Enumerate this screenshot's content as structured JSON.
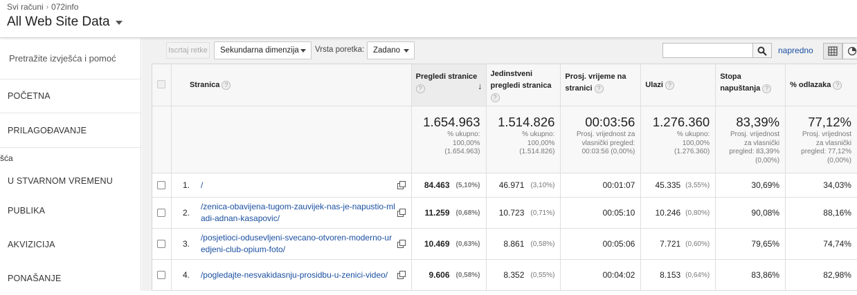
{
  "header": {
    "breadcrumb_root": "Svi računi",
    "breadcrumb_account": "072info",
    "property": "All Web Site Data"
  },
  "sidebar": {
    "search": "Pretražite izvješća i pomoć",
    "items": [
      "POČETNA",
      "PRILAGOĐAVANJE"
    ],
    "section_label": "šća",
    "items2": [
      "U STVARNOM VREMENU",
      "PUBLIKA",
      "AKVIZICIJA",
      "PONAŠANJE"
    ]
  },
  "toolbar": {
    "plot_rows": "Iscrtaj retke",
    "secondary_dim": "Sekundarna dimenzija",
    "sort_type_label": "Vrsta poretka:",
    "sort_type": "Zadano",
    "search_value": "",
    "advanced": "napredno"
  },
  "table": {
    "headers": {
      "page": "Stranica",
      "pageviews": "Pregledi stranice",
      "unique_line1": "Jedinstveni",
      "unique_line2": "pregledi stranica",
      "avg_time_line1": "Prosj. vrijeme na",
      "avg_time_line2": "stranici",
      "entrances": "Ulazi",
      "exit_line1": "Stopa",
      "exit_line2": "napuštanja",
      "bounce": "% odlazaka"
    },
    "totals": {
      "pageviews": "1.654.963",
      "pageviews_sub": [
        "% ukupno:",
        "100,00%",
        "(1.654.963)"
      ],
      "unique": "1.514.826",
      "unique_sub": [
        "% ukupno:",
        "100,00%",
        "(1.514.826)"
      ],
      "avg_time": "00:03:56",
      "avg_time_sub": [
        "Prosj. vrijednost za",
        "vlasnički pregled:",
        "00:03:56 (0,00%)"
      ],
      "entrances": "1.276.360",
      "entrances_sub": [
        "% ukupno:",
        "100,00%",
        "(1.276.360)"
      ],
      "exit": "83,39%",
      "exit_sub": [
        "Prosj. vrijednost",
        "za vlasnički",
        "pregled: 83,39%",
        "(0,00%)"
      ],
      "bounce": "77,12%",
      "bounce_sub": [
        "Prosj. vrijednost",
        "za vlasnički",
        "pregled: 77,12%",
        "(0,00%)"
      ]
    },
    "rows": [
      {
        "idx": "1.",
        "page": "/",
        "pv": "84.463",
        "pv_pct": "(5,10%)",
        "upv": "46.971",
        "upv_pct": "(3,10%)",
        "time": "00:01:07",
        "ent": "45.335",
        "ent_pct": "(3,55%)",
        "exit": "30,69%",
        "bounce": "34,03%"
      },
      {
        "idx": "2.",
        "page": "/zenica-obavijena-tugom-zauvijek-nas-je-napustio-mladi-adnan-kasapovic/",
        "pv": "11.259",
        "pv_pct": "(0,68%)",
        "upv": "10.723",
        "upv_pct": "(0,71%)",
        "time": "00:05:10",
        "ent": "10.246",
        "ent_pct": "(0,80%)",
        "exit": "90,08%",
        "bounce": "88,16%"
      },
      {
        "idx": "3.",
        "page": "/posjetioci-odusevljeni-svecano-otvoren-moderno-uredjeni-club-opium-foto/",
        "pv": "10.469",
        "pv_pct": "(0,63%)",
        "upv": "8.861",
        "upv_pct": "(0,58%)",
        "time": "00:05:06",
        "ent": "7.721",
        "ent_pct": "(0,60%)",
        "exit": "79,65%",
        "bounce": "74,74%"
      },
      {
        "idx": "4.",
        "page": "/pogledajte-nesvakidasnju-prosidbu-u-zenici-video/",
        "pv": "9.606",
        "pv_pct": "(0,58%)",
        "upv": "8.352",
        "upv_pct": "(0,55%)",
        "time": "00:04:02",
        "ent": "8.153",
        "ent_pct": "(0,64%)",
        "exit": "83,86%",
        "bounce": "82,98%"
      }
    ]
  }
}
